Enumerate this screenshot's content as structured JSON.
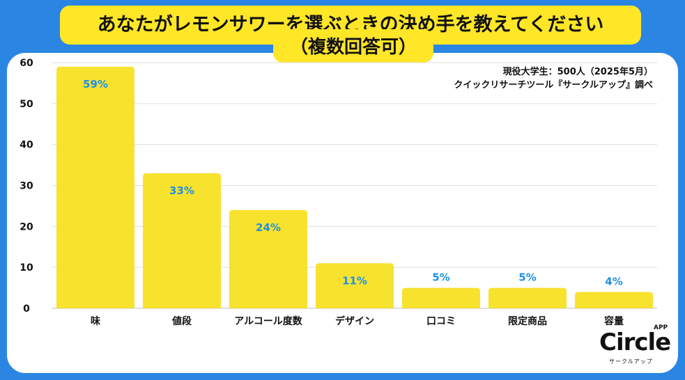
{
  "title": "あなたがレモンサワーを選ぶときの決め手を教えてください",
  "subtitle": "（複数回答可）",
  "source": {
    "line1": "現役大学生：500人（2025年5月）",
    "line2": "クイックリサーチツール『サークルアップ』調べ"
  },
  "logo": {
    "word": "Circle",
    "app": "APP",
    "kana": "サークルアップ"
  },
  "colors": {
    "background": "#2B86E3",
    "bar": "#F7E22E",
    "label": "#1E90E6",
    "title_box": "#FFE627"
  },
  "chart_data": {
    "type": "bar",
    "categories": [
      "味",
      "値段",
      "アルコール度数",
      "デザイン",
      "口コミ",
      "限定商品",
      "容量"
    ],
    "values": [
      59,
      33,
      24,
      11,
      5,
      5,
      4
    ],
    "data_labels": [
      "59%",
      "33%",
      "24%",
      "11%",
      "5%",
      "5%",
      "4%"
    ],
    "ylim": [
      0,
      60
    ],
    "yticks": [
      0,
      10,
      20,
      30,
      40,
      50,
      60
    ],
    "grid": true,
    "title": "",
    "xlabel": "",
    "ylabel": ""
  }
}
